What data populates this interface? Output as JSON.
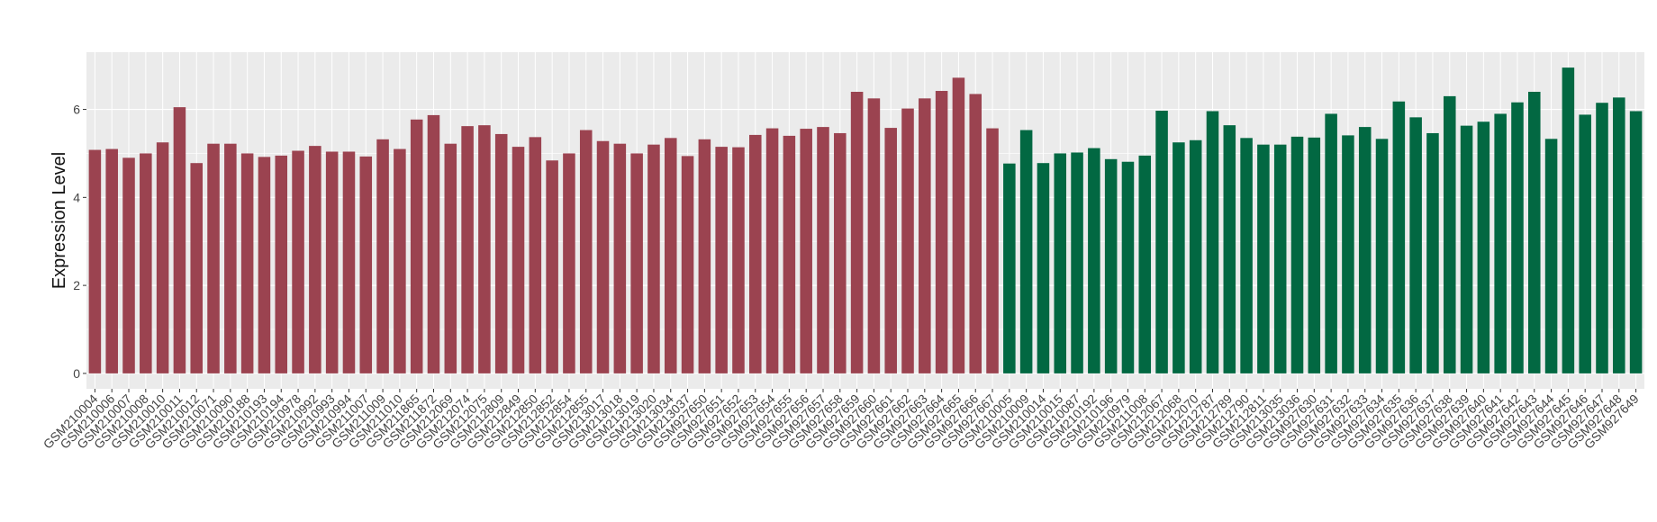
{
  "chart_data": {
    "type": "bar",
    "ylabel": "Expression Level",
    "xlabel": "",
    "ylim": [
      -0.35,
      7.3
    ],
    "yticks": [
      0,
      2,
      4,
      6
    ],
    "grid": true,
    "legend": "none",
    "colors": {
      "group1": "#9b4350",
      "group2": "#026842",
      "panel": "#ebebeb",
      "grid": "#ffffff"
    },
    "categories": [
      "GSM210004",
      "GSM210006",
      "GSM210007",
      "GSM210008",
      "GSM210010",
      "GSM210011",
      "GSM210012",
      "GSM210071",
      "GSM210090",
      "GSM210188",
      "GSM210193",
      "GSM210194",
      "GSM210978",
      "GSM210992",
      "GSM210993",
      "GSM210994",
      "GSM211007",
      "GSM211009",
      "GSM211010",
      "GSM211865",
      "GSM211872",
      "GSM212069",
      "GSM212074",
      "GSM212075",
      "GSM212809",
      "GSM212849",
      "GSM212850",
      "GSM212852",
      "GSM212854",
      "GSM212855",
      "GSM213017",
      "GSM213018",
      "GSM213019",
      "GSM213020",
      "GSM213034",
      "GSM213037",
      "GSM927650",
      "GSM927651",
      "GSM927652",
      "GSM927653",
      "GSM927654",
      "GSM927655",
      "GSM927656",
      "GSM927657",
      "GSM927658",
      "GSM927659",
      "GSM927660",
      "GSM927661",
      "GSM927662",
      "GSM927663",
      "GSM927664",
      "GSM927665",
      "GSM927666",
      "GSM927667",
      "GSM210005",
      "GSM210009",
      "GSM210014",
      "GSM210015",
      "GSM210087",
      "GSM210192",
      "GSM210196",
      "GSM210979",
      "GSM211008",
      "GSM212067",
      "GSM212068",
      "GSM212070",
      "GSM212787",
      "GSM212789",
      "GSM212790",
      "GSM212811",
      "GSM213035",
      "GSM213036",
      "GSM927630",
      "GSM927631",
      "GSM927632",
      "GSM927633",
      "GSM927634",
      "GSM927635",
      "GSM927636",
      "GSM927637",
      "GSM927638",
      "GSM927639",
      "GSM927640",
      "GSM927641",
      "GSM927642",
      "GSM927643",
      "GSM927644",
      "GSM927645",
      "GSM927646",
      "GSM927647",
      "GSM927648",
      "GSM927649"
    ],
    "values": [
      5.08,
      5.1,
      4.9,
      5.0,
      5.25,
      6.05,
      4.78,
      5.22,
      5.22,
      5.0,
      4.92,
      4.95,
      5.06,
      5.17,
      5.04,
      5.04,
      4.93,
      5.32,
      5.1,
      5.77,
      5.87,
      5.22,
      5.62,
      5.64,
      5.44,
      5.15,
      5.37,
      4.84,
      5.0,
      5.53,
      5.28,
      5.22,
      5.0,
      5.2,
      5.35,
      4.94,
      5.32,
      5.15,
      5.14,
      5.42,
      5.57,
      5.4,
      5.56,
      5.6,
      5.46,
      6.4,
      6.25,
      5.58,
      6.02,
      6.25,
      6.42,
      6.72,
      6.35,
      5.57,
      4.77,
      5.53,
      4.78,
      5.0,
      5.02,
      5.12,
      4.87,
      4.81,
      4.95,
      5.97,
      5.25,
      5.3,
      5.96,
      5.64,
      5.35,
      5.2,
      5.2,
      5.38,
      5.36,
      5.9,
      5.41,
      5.6,
      5.33,
      6.18,
      5.82,
      5.46,
      6.3,
      5.63,
      5.72,
      5.9,
      6.16,
      6.4,
      5.33,
      6.95,
      5.88,
      6.15,
      6.27,
      5.96
    ],
    "group_sizes": [
      54,
      38
    ]
  }
}
